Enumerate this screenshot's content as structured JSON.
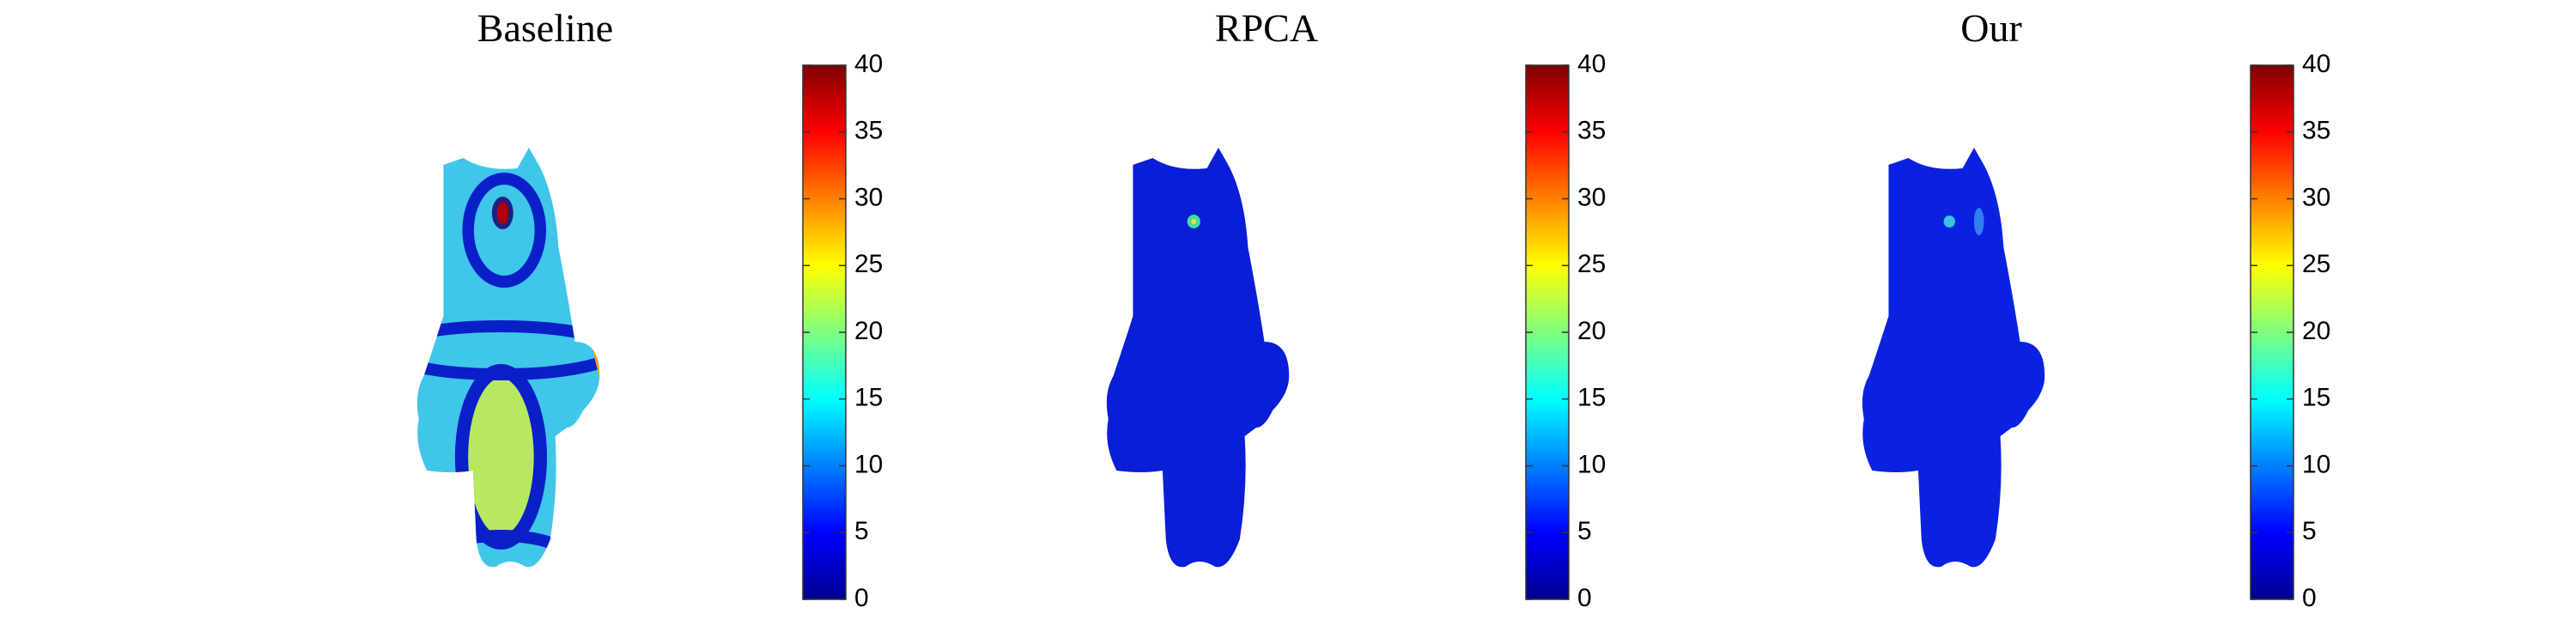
{
  "chart_data": [
    {
      "type": "colormap",
      "title": "Baseline",
      "clim": [
        0,
        40
      ],
      "cticks": [
        0,
        5,
        10,
        15,
        20,
        25,
        30,
        35,
        40
      ]
    },
    {
      "type": "colormap",
      "title": "RPCA",
      "clim": [
        0,
        40
      ],
      "cticks": [
        0,
        5,
        10,
        15,
        20,
        25,
        30,
        35,
        40
      ]
    },
    {
      "type": "colormap",
      "title": "Our",
      "clim": [
        0,
        40
      ],
      "cticks": [
        0,
        5,
        10,
        15,
        20,
        25,
        30,
        35,
        40
      ]
    }
  ]
}
